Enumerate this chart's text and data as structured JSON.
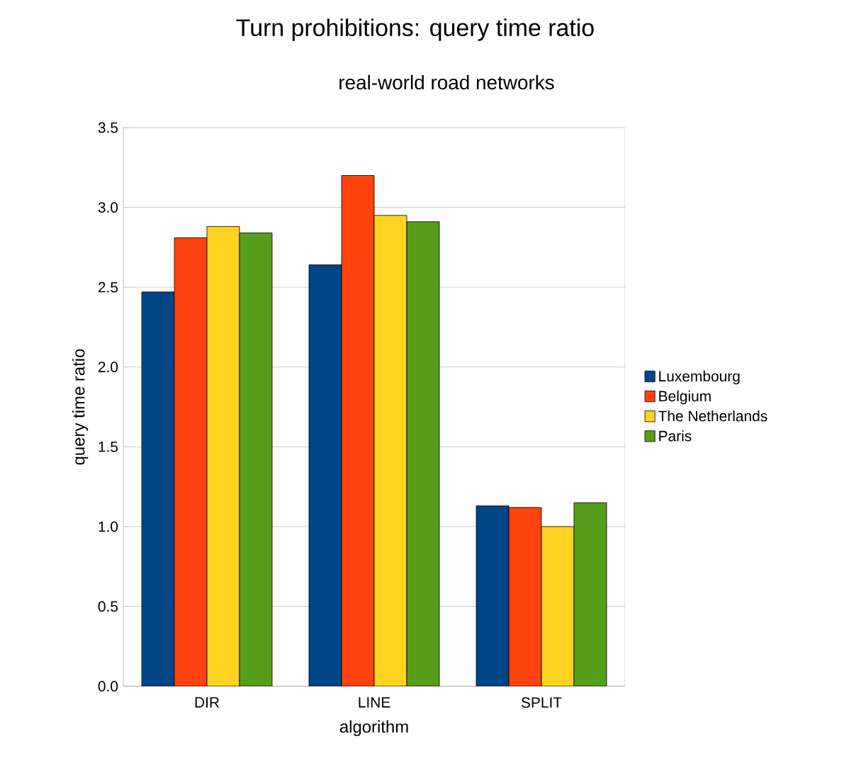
{
  "chart_data": {
    "type": "bar",
    "title": "Turn prohibitions: query time ratio",
    "subtitle": "real-world road networks",
    "xlabel": "algorithm",
    "ylabel": "query time ratio",
    "categories": [
      "DIR",
      "LINE",
      "SPLIT"
    ],
    "series": [
      {
        "name": "Luxembourg",
        "color": "#004586",
        "values": [
          2.47,
          2.64,
          1.13
        ]
      },
      {
        "name": "Belgium",
        "color": "#ff420e",
        "values": [
          2.81,
          3.2,
          1.12
        ]
      },
      {
        "name": "The Netherlands",
        "color": "#ffd320",
        "values": [
          2.88,
          2.95,
          1.0
        ]
      },
      {
        "name": "Paris",
        "color": "#579d1c",
        "values": [
          2.84,
          2.91,
          1.15
        ]
      }
    ],
    "ylim": [
      0,
      3.5
    ],
    "yticks": [
      {
        "value": 0,
        "label": "0.0"
      },
      {
        "value": 0.5,
        "label": "0.5"
      },
      {
        "value": 1,
        "label": "1.0"
      },
      {
        "value": 1.5,
        "label": "1.5"
      },
      {
        "value": 2,
        "label": "2.0"
      },
      {
        "value": 2.5,
        "label": "2.5"
      },
      {
        "value": 3,
        "label": "3.0"
      },
      {
        "value": 3.5,
        "label": "3.5"
      }
    ],
    "grid": "y",
    "legend": "right"
  }
}
